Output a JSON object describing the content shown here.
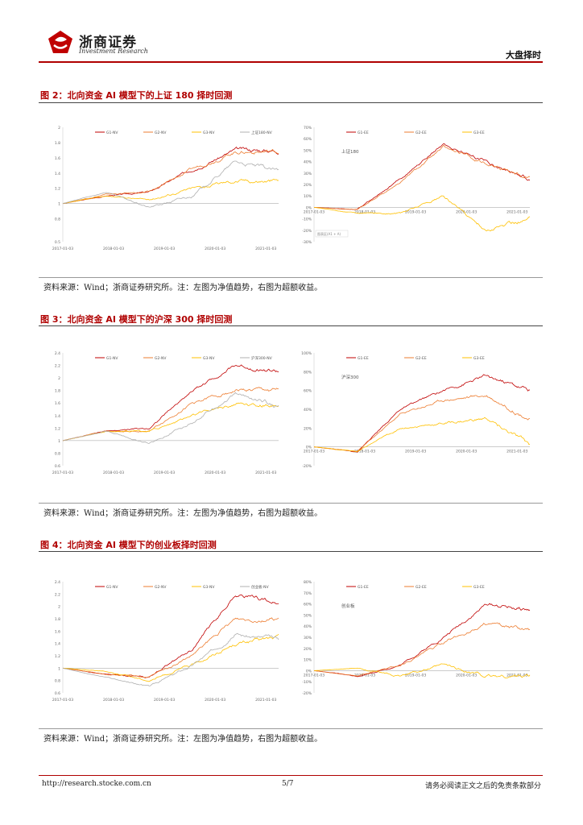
{
  "header": {
    "logo_cn": "浙商证券",
    "logo_en": "Investment Research",
    "section": "大盘择时"
  },
  "figures": [
    {
      "title": "图 2：北向资金 AI 模型下的上证 180 择时回测",
      "source": "资料来源：Wind；浙商证券研究所。注：左图为净值趋势，右图为超额收益。",
      "left": {
        "yticks": [
          "2",
          "1.8",
          "1.6",
          "1.4",
          "1.2",
          "1",
          "0.8",
          "0.5"
        ],
        "xticks": [
          "2017-01-03",
          "2018-01-03",
          "2019-01-03",
          "2020-01-03",
          "2021-01-03"
        ],
        "legend": [
          "G1-NV",
          "G2-NV",
          "G3-NV",
          "上证180-NV"
        ]
      },
      "right": {
        "label": "上证180",
        "yticks": [
          "70%",
          "60%",
          "50%",
          "40%",
          "30%",
          "20%",
          "10%",
          "0%",
          "-10%",
          "-20%",
          "-30%"
        ],
        "xticks": [
          "2017-01-03",
          "2018-01-03",
          "2019-01-03",
          "2020-01-03",
          "2021-01-03"
        ],
        "legend": [
          "G1-EE",
          "G2-EE",
          "G3-EE"
        ],
        "note": "图表区(A1 + A)"
      }
    },
    {
      "title": "图 3：北向资金 AI 模型下的沪深 300 择时回测",
      "source": "资料来源：Wind；浙商证券研究所。注：左图为净值趋势，右图为超额收益。",
      "left": {
        "yticks": [
          "2.4",
          "2.2",
          "2",
          "1.8",
          "1.6",
          "1.4",
          "1.2",
          "1",
          "0.8",
          "0.6"
        ],
        "xticks": [
          "2017-01-03",
          "2018-01-03",
          "2019-01-03",
          "2020-01-03",
          "2021-01-03"
        ],
        "legend": [
          "G1-NV",
          "G2-NV",
          "G3-NV",
          "沪深300-NV"
        ]
      },
      "right": {
        "label": "沪深300",
        "yticks": [
          "100%",
          "80%",
          "60%",
          "40%",
          "20%",
          "0%",
          "-20%"
        ],
        "xticks": [
          "2017-01-03",
          "2018-01-03",
          "2019-01-03",
          "2020-01-03",
          "2021-01-03"
        ],
        "legend": [
          "G1-EE",
          "G2-EE",
          "G3-EE"
        ],
        "note": ""
      }
    },
    {
      "title": "图 4：北向资金 AI 模型下的创业板择时回测",
      "source": "资料来源：Wind；浙商证券研究所。注：左图为净值趋势，右图为超额收益。",
      "left": {
        "yticks": [
          "2.4",
          "2.2",
          "2",
          "1.8",
          "1.6",
          "1.4",
          "1.2",
          "1",
          "0.8",
          "0.6"
        ],
        "xticks": [
          "2017-01-03",
          "2018-01-03",
          "2019-01-03",
          "2020-01-03",
          "2021-01-03"
        ],
        "legend": [
          "G1-NV",
          "G2-NV",
          "G3-NV",
          "创业板-NV"
        ]
      },
      "right": {
        "label": "创业板",
        "yticks": [
          "80%",
          "70%",
          "60%",
          "50%",
          "40%",
          "30%",
          "20%",
          "10%",
          "0%",
          "-10%",
          "-20%"
        ],
        "xticks": [
          "2017-01-03",
          "2018-01-03",
          "2019-01-03",
          "2020-01-03",
          "2021-01-03"
        ],
        "legend": [
          "G1-EE",
          "G2-EE",
          "G3-EE"
        ],
        "note": ""
      }
    }
  ],
  "footer": {
    "url": "http://research.stocke.com.cn",
    "page": "5/7",
    "disclaimer": "请务必阅读正文之后的免责条款部分"
  },
  "colors": {
    "g1": "#c00000",
    "g2": "#ed7d31",
    "g3": "#ffc000",
    "bench": "#b0b0b0",
    "accent": "#b00000"
  },
  "chart_data": [
    {
      "type": "line",
      "name_ref": "figure-2-left",
      "x": [
        "2017-01-03",
        "2018-01-03",
        "2019-01-03",
        "2020-01-03",
        "2021-01-03",
        "2021-06-30"
      ],
      "ylim": [
        0.5,
        2
      ],
      "series": [
        {
          "name": "G1-NV",
          "values": [
            1.0,
            1.1,
            1.15,
            1.45,
            1.7,
            1.7
          ]
        },
        {
          "name": "G2-NV",
          "values": [
            1.0,
            1.12,
            1.15,
            1.45,
            1.68,
            1.68
          ]
        },
        {
          "name": "G3-NV",
          "values": [
            1.0,
            1.1,
            1.05,
            1.2,
            1.3,
            1.3
          ]
        },
        {
          "name": "上证180-NV",
          "values": [
            1.0,
            1.15,
            0.95,
            1.1,
            1.55,
            1.42
          ]
        }
      ]
    },
    {
      "type": "line",
      "name_ref": "figure-2-right",
      "x": [
        "2017-01-03",
        "2018-01-03",
        "2019-01-03",
        "2020-01-03",
        "2021-01-03",
        "2021-06-30"
      ],
      "ylim": [
        -0.3,
        0.7
      ],
      "series": [
        {
          "name": "G1-EE",
          "values": [
            0,
            -0.02,
            0.25,
            0.55,
            0.4,
            0.25
          ]
        },
        {
          "name": "G2-EE",
          "values": [
            0,
            -0.02,
            0.22,
            0.52,
            0.38,
            0.27
          ]
        },
        {
          "name": "G3-EE",
          "values": [
            0,
            -0.05,
            -0.05,
            0.1,
            -0.2,
            -0.1
          ]
        }
      ]
    },
    {
      "type": "line",
      "name_ref": "figure-3-left",
      "x": [
        "2017-01-03",
        "2018-01-03",
        "2019-01-03",
        "2020-01-03",
        "2021-01-03",
        "2021-06-30"
      ],
      "ylim": [
        0.6,
        2.4
      ],
      "series": [
        {
          "name": "G1-NV",
          "values": [
            1.0,
            1.15,
            1.2,
            1.8,
            2.2,
            2.1
          ]
        },
        {
          "name": "G2-NV",
          "values": [
            1.0,
            1.15,
            1.15,
            1.6,
            1.8,
            1.8
          ]
        },
        {
          "name": "G3-NV",
          "values": [
            1.0,
            1.15,
            1.15,
            1.4,
            1.6,
            1.55
          ]
        },
        {
          "name": "沪深300-NV",
          "values": [
            1.0,
            1.15,
            0.95,
            1.3,
            1.75,
            1.55
          ]
        }
      ]
    },
    {
      "type": "line",
      "name_ref": "figure-3-right",
      "x": [
        "2017-01-03",
        "2018-01-03",
        "2019-01-03",
        "2020-01-03",
        "2021-01-03",
        "2021-06-30"
      ],
      "ylim": [
        -0.2,
        1.0
      ],
      "series": [
        {
          "name": "G1-EE",
          "values": [
            0,
            -0.05,
            0.4,
            0.6,
            0.75,
            0.6
          ]
        },
        {
          "name": "G2-EE",
          "values": [
            0,
            -0.05,
            0.35,
            0.5,
            0.55,
            0.3
          ]
        },
        {
          "name": "G3-EE",
          "values": [
            0,
            -0.05,
            0.2,
            0.25,
            0.3,
            0.02
          ]
        }
      ]
    },
    {
      "type": "line",
      "name_ref": "figure-4-left",
      "x": [
        "2017-01-03",
        "2018-01-03",
        "2019-01-03",
        "2020-01-03",
        "2021-01-03",
        "2021-06-30"
      ],
      "ylim": [
        0.6,
        2.4
      ],
      "series": [
        {
          "name": "G1-NV",
          "values": [
            1.0,
            0.9,
            0.85,
            1.3,
            2.2,
            2.05
          ]
        },
        {
          "name": "G2-NV",
          "values": [
            1.0,
            0.9,
            0.85,
            1.2,
            1.8,
            1.8
          ]
        },
        {
          "name": "G3-NV",
          "values": [
            1.0,
            0.95,
            0.8,
            1.05,
            1.4,
            1.5
          ]
        },
        {
          "name": "创业板-NV",
          "values": [
            1.0,
            0.85,
            0.7,
            1.05,
            1.55,
            1.45
          ]
        }
      ]
    },
    {
      "type": "line",
      "name_ref": "figure-4-right",
      "x": [
        "2017-01-03",
        "2018-01-03",
        "2019-01-03",
        "2020-01-03",
        "2021-01-03",
        "2021-06-30"
      ],
      "ylim": [
        -0.2,
        0.8
      ],
      "series": [
        {
          "name": "G1-EE",
          "values": [
            0,
            -0.05,
            0.05,
            0.3,
            0.6,
            0.55
          ]
        },
        {
          "name": "G2-EE",
          "values": [
            0,
            -0.05,
            0.05,
            0.25,
            0.42,
            0.35
          ]
        },
        {
          "name": "G3-EE",
          "values": [
            0,
            0.02,
            -0.05,
            0.05,
            -0.05,
            -0.05
          ]
        }
      ]
    }
  ]
}
